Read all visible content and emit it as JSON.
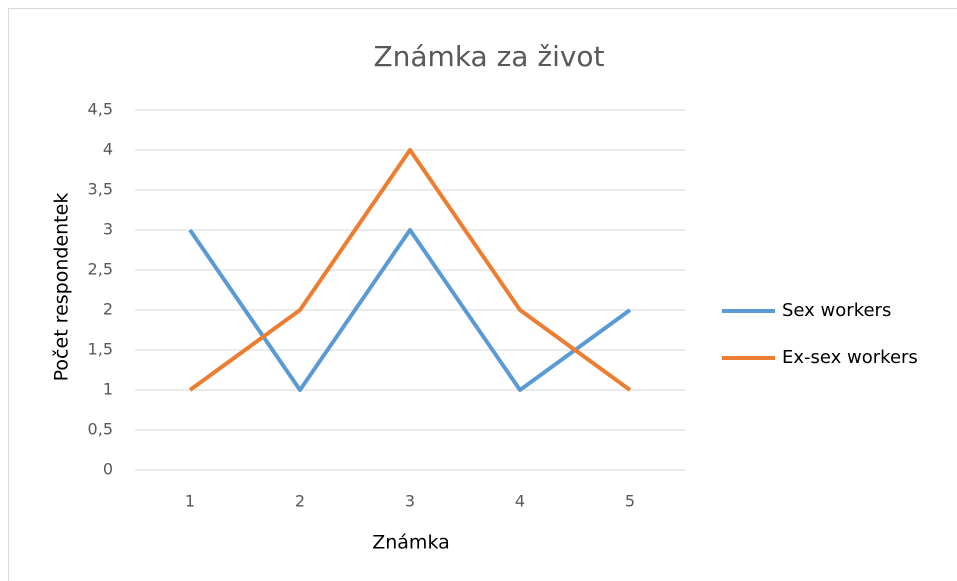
{
  "chart_data": {
    "type": "line",
    "title": "Známka za život",
    "x_label": "Známka",
    "y_label": "Počet respondentek",
    "categories": [
      "1",
      "2",
      "3",
      "4",
      "5"
    ],
    "series": [
      {
        "name": "Sex workers",
        "color": "#5b9bd5",
        "values": [
          3,
          1,
          3,
          1,
          2
        ]
      },
      {
        "name": "Ex-sex workers",
        "color": "#ed7d31",
        "values": [
          1,
          2,
          4,
          2,
          1
        ]
      }
    ],
    "ylim": [
      0,
      4.5
    ],
    "yticks": [
      0,
      {
        "value": 0.5,
        "label": "0,5"
      },
      1,
      {
        "value": 1.5,
        "label": "1,5"
      },
      2,
      {
        "value": 2.5,
        "label": "2,5"
      },
      3,
      {
        "value": 3.5,
        "label": "3,5"
      },
      4,
      {
        "value": 4.5,
        "label": "4,5"
      }
    ],
    "grid": true,
    "legend": "right"
  }
}
